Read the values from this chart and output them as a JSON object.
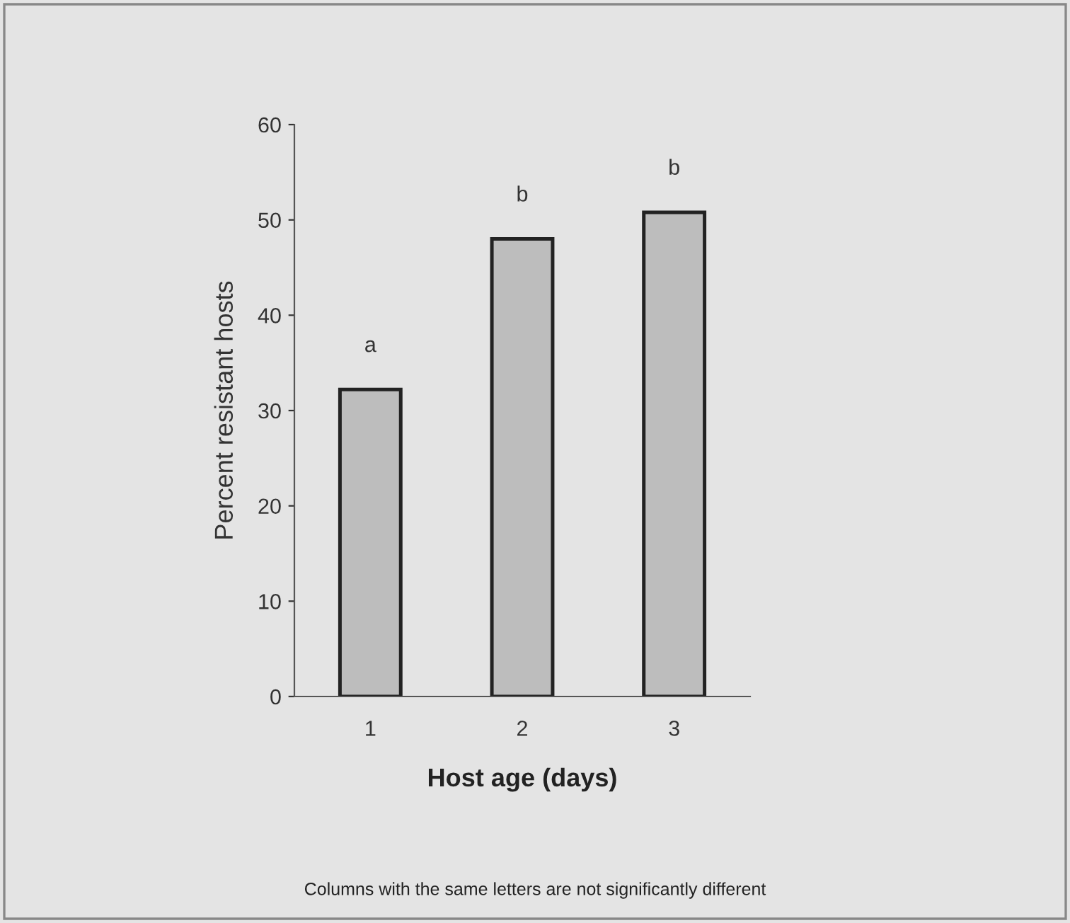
{
  "chart_data": {
    "type": "bar",
    "xlabel": "Host age (days)",
    "ylabel": "Percent resistant hosts",
    "categories": [
      "1",
      "2",
      "3"
    ],
    "values": [
      32.2,
      48,
      50.8
    ],
    "color": "#bdbdbd",
    "ylim": [
      0,
      60
    ],
    "yticks": [
      0,
      10,
      20,
      30,
      40,
      50,
      60
    ],
    "grid": false,
    "annotations": [
      "a",
      "b",
      "b",
      "Columns with the same letters are not significantly different"
    ]
  }
}
